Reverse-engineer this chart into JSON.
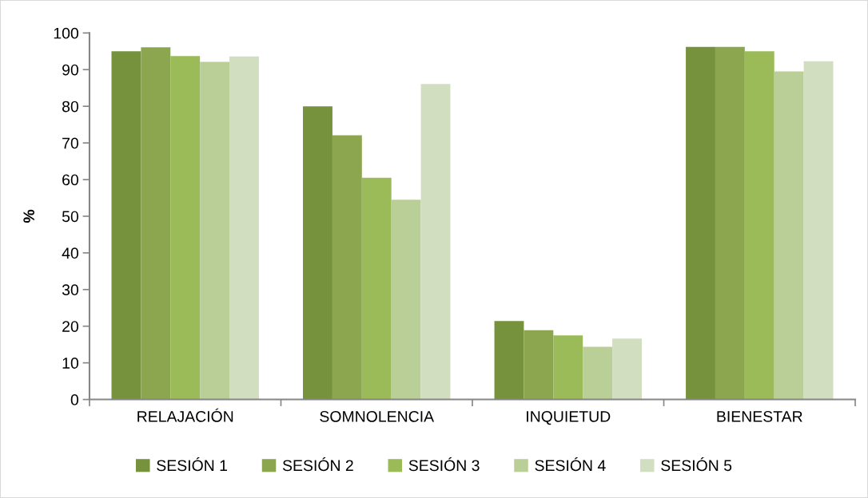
{
  "chart_data": {
    "type": "bar",
    "ylabel": "%",
    "categories": [
      "RELAJACIÓN",
      "SOMNOLENCIA",
      "INQUIETUD",
      "BIENESTAR"
    ],
    "series": [
      {
        "name": "SESIÓN 1",
        "color": "#76923c",
        "values": [
          95.0,
          80.0,
          21.4,
          96.2
        ]
      },
      {
        "name": "SESIÓN 2",
        "color": "#8ba64f",
        "values": [
          96.1,
          72.1,
          18.9,
          96.2
        ]
      },
      {
        "name": "SESIÓN 3",
        "color": "#9bbb59",
        "values": [
          93.7,
          60.5,
          17.5,
          95.0
        ]
      },
      {
        "name": "SESIÓN 4",
        "color": "#bacf97",
        "values": [
          92.1,
          54.5,
          14.4,
          89.5
        ]
      },
      {
        "name": "SESIÓN 5",
        "color": "#d2dec0",
        "values": [
          93.6,
          86.1,
          16.6,
          92.3
        ]
      }
    ],
    "ylim": [
      0,
      100
    ],
    "yticks": [
      0,
      10,
      20,
      30,
      40,
      50,
      60,
      70,
      80,
      90,
      100
    ],
    "grid": false,
    "legend": "bottom"
  }
}
